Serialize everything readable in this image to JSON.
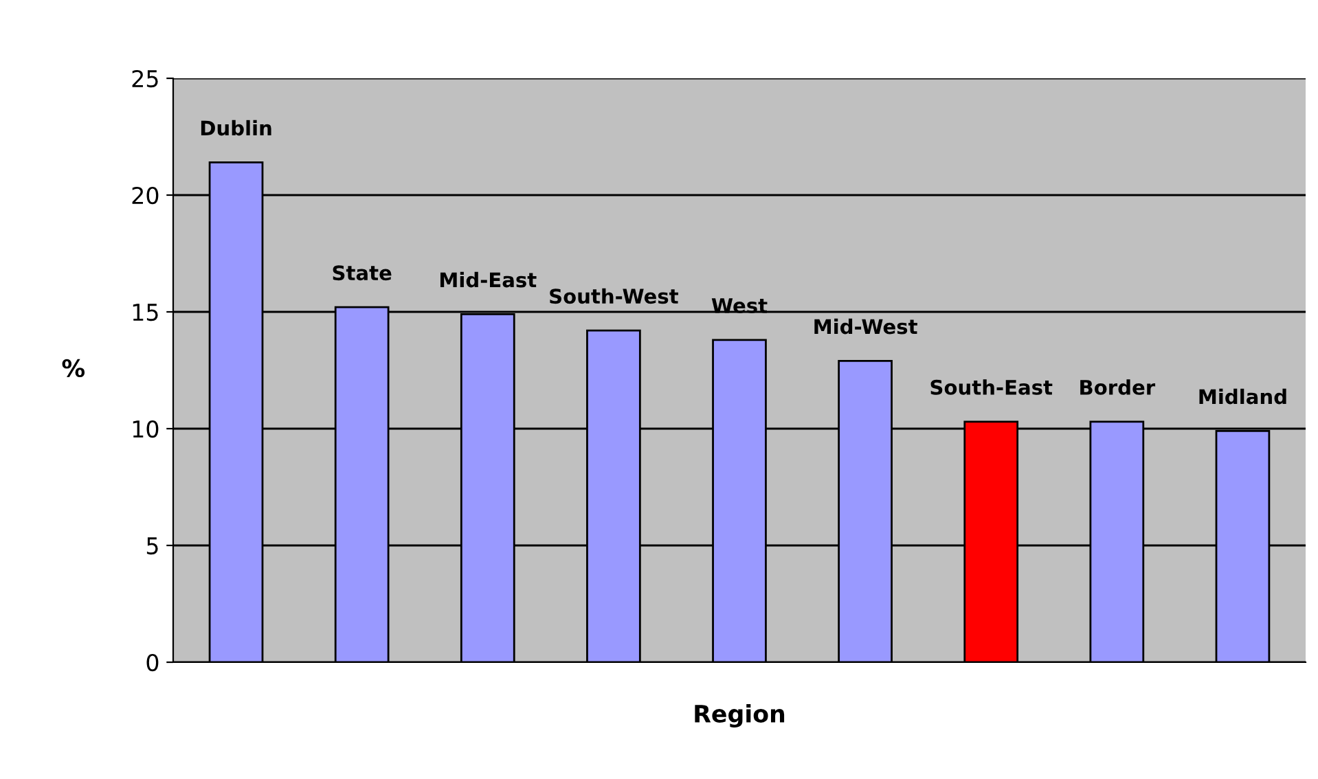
{
  "chart_data": {
    "type": "bar",
    "xlabel": "Region",
    "ylabel": "%",
    "categories": [
      "Dublin",
      "State",
      "Mid-East",
      "South-West",
      "West",
      "Mid-West",
      "South-East",
      "Border",
      "Midland"
    ],
    "values": [
      21.4,
      15.2,
      14.9,
      14.2,
      13.8,
      12.9,
      10.3,
      10.3,
      9.9
    ],
    "colors": [
      "#9999ff",
      "#9999ff",
      "#9999ff",
      "#9999ff",
      "#9999ff",
      "#9999ff",
      "#ff0000",
      "#9999ff",
      "#9999ff"
    ],
    "ylim": [
      0,
      25
    ],
    "yticks": [
      0,
      5,
      10,
      15,
      20,
      25
    ],
    "grid": "y",
    "legend": false
  }
}
